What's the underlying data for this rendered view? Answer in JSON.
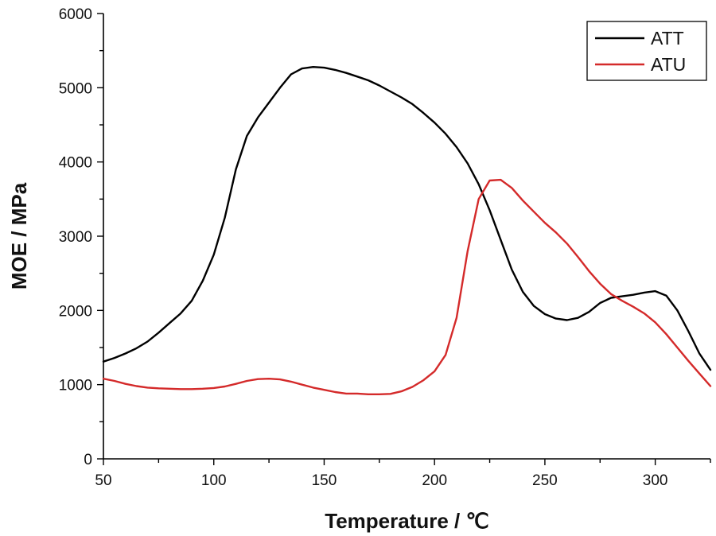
{
  "chart_data": {
    "type": "line",
    "title": "",
    "xlabel": "Temperature / ℃",
    "ylabel": "MOE / MPa",
    "xlim": [
      50,
      325
    ],
    "ylim": [
      0,
      6000
    ],
    "xticks": [
      50,
      100,
      150,
      200,
      250,
      300
    ],
    "yticks": [
      0,
      1000,
      2000,
      3000,
      4000,
      5000,
      6000
    ],
    "legend_position": "top-right",
    "series": [
      {
        "name": "ATT",
        "color": "#000000",
        "x": [
          50,
          55,
          60,
          65,
          70,
          75,
          80,
          85,
          90,
          95,
          100,
          105,
          110,
          115,
          120,
          125,
          130,
          135,
          140,
          145,
          150,
          155,
          160,
          165,
          170,
          175,
          180,
          185,
          190,
          195,
          200,
          205,
          210,
          215,
          220,
          225,
          230,
          235,
          240,
          245,
          250,
          255,
          260,
          265,
          270,
          275,
          280,
          285,
          290,
          295,
          300,
          305,
          310,
          315,
          320,
          325
        ],
        "y": [
          1310,
          1360,
          1420,
          1490,
          1580,
          1700,
          1830,
          1960,
          2130,
          2400,
          2750,
          3250,
          3900,
          4350,
          4600,
          4800,
          5000,
          5180,
          5260,
          5280,
          5270,
          5240,
          5200,
          5150,
          5100,
          5030,
          4950,
          4870,
          4780,
          4660,
          4530,
          4380,
          4200,
          3980,
          3700,
          3350,
          2950,
          2550,
          2250,
          2060,
          1950,
          1890,
          1870,
          1900,
          1980,
          2100,
          2170,
          2190,
          2210,
          2240,
          2260,
          2200,
          2000,
          1720,
          1420,
          1200
        ]
      },
      {
        "name": "ATU",
        "color": "#d42a2a",
        "x": [
          50,
          55,
          60,
          65,
          70,
          75,
          80,
          85,
          90,
          95,
          100,
          105,
          110,
          115,
          120,
          125,
          130,
          135,
          140,
          145,
          150,
          155,
          160,
          165,
          170,
          175,
          180,
          185,
          190,
          195,
          200,
          205,
          210,
          215,
          220,
          225,
          230,
          235,
          240,
          245,
          250,
          255,
          260,
          265,
          270,
          275,
          280,
          285,
          290,
          295,
          300,
          305,
          310,
          315,
          320,
          325
        ],
        "y": [
          1080,
          1050,
          1010,
          980,
          960,
          950,
          945,
          940,
          940,
          945,
          955,
          975,
          1010,
          1050,
          1075,
          1080,
          1070,
          1040,
          1000,
          960,
          930,
          900,
          880,
          880,
          870,
          870,
          875,
          910,
          970,
          1060,
          1180,
          1400,
          1900,
          2800,
          3500,
          3750,
          3760,
          3650,
          3480,
          3330,
          3180,
          3050,
          2900,
          2720,
          2530,
          2360,
          2220,
          2130,
          2050,
          1960,
          1840,
          1680,
          1500,
          1320,
          1150,
          980
        ]
      }
    ]
  }
}
